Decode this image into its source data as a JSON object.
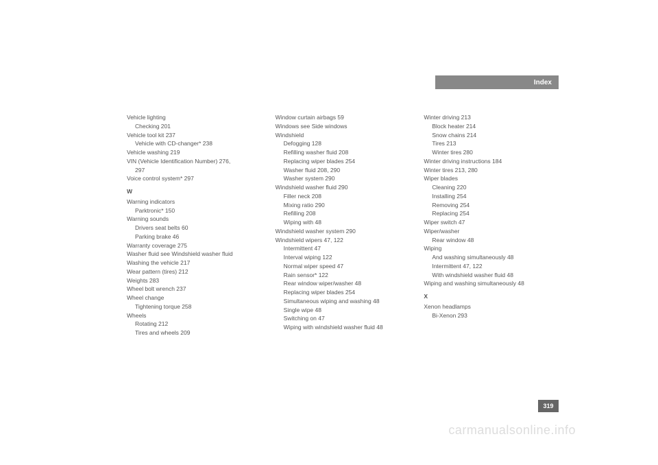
{
  "header": {
    "title": "Index"
  },
  "page_badge": "319",
  "watermark": "carmanualsonline.info",
  "columns": [
    {
      "items": [
        {
          "type": "line",
          "text": "Vehicle lighting"
        },
        {
          "type": "sub",
          "text": "Checking 201"
        },
        {
          "type": "line",
          "text": "Vehicle tool kit 237"
        },
        {
          "type": "sub",
          "text": "Vehicle with CD-changer* 238"
        },
        {
          "type": "line",
          "text": "Vehicle washing 219"
        },
        {
          "type": "line",
          "text": "VIN (Vehicle Identification Number) 276,"
        },
        {
          "type": "sub",
          "text": "297"
        },
        {
          "type": "line",
          "text": "Voice control system* 297"
        },
        {
          "type": "letter",
          "text": "W"
        },
        {
          "type": "line",
          "text": "Warning indicators"
        },
        {
          "type": "sub",
          "text": "Parktronic* 150"
        },
        {
          "type": "line",
          "text": "Warning sounds"
        },
        {
          "type": "sub",
          "text": "Drivers seat belts 60"
        },
        {
          "type": "sub",
          "text": "Parking brake 46"
        },
        {
          "type": "line",
          "text": "Warranty coverage 275"
        },
        {
          "type": "line",
          "text": "Washer fluid see Windshield washer fluid"
        },
        {
          "type": "line",
          "text": "Washing the vehicle 217"
        },
        {
          "type": "line",
          "text": "Wear pattern (tires) 212"
        },
        {
          "type": "line",
          "text": "Weights 283"
        },
        {
          "type": "line",
          "text": "Wheel bolt wrench 237"
        },
        {
          "type": "line",
          "text": "Wheel change"
        },
        {
          "type": "sub",
          "text": "Tightening torque 258"
        },
        {
          "type": "line",
          "text": "Wheels"
        },
        {
          "type": "sub",
          "text": "Rotating 212"
        },
        {
          "type": "sub",
          "text": "Tires and wheels 209"
        }
      ]
    },
    {
      "items": [
        {
          "type": "line",
          "text": "Window curtain airbags 59"
        },
        {
          "type": "line",
          "text": "Windows see Side windows"
        },
        {
          "type": "line",
          "text": "Windshield"
        },
        {
          "type": "sub",
          "text": "Defogging 128"
        },
        {
          "type": "sub",
          "text": "Refilling washer fluid 208"
        },
        {
          "type": "sub",
          "text": "Replacing wiper blades 254"
        },
        {
          "type": "sub",
          "text": "Washer fluid 208, 290"
        },
        {
          "type": "sub",
          "text": "Washer system 290"
        },
        {
          "type": "line",
          "text": "Windshield washer fluid 290"
        },
        {
          "type": "sub",
          "text": "Filler neck 208"
        },
        {
          "type": "sub",
          "text": "Mixing ratio 290"
        },
        {
          "type": "sub",
          "text": "Refilling 208"
        },
        {
          "type": "sub",
          "text": "Wiping with 48"
        },
        {
          "type": "line",
          "text": "Windshield washer system 290"
        },
        {
          "type": "line",
          "text": "Windshield wipers 47, 122"
        },
        {
          "type": "sub",
          "text": "Intermittent 47"
        },
        {
          "type": "sub",
          "text": "Interval wiping 122"
        },
        {
          "type": "sub",
          "text": "Normal wiper speed 47"
        },
        {
          "type": "sub",
          "text": "Rain sensor* 122"
        },
        {
          "type": "sub",
          "text": "Rear window wiper/washer 48"
        },
        {
          "type": "sub",
          "text": "Replacing wiper blades 254"
        },
        {
          "type": "sub",
          "text": "Simultaneous wiping and washing 48"
        },
        {
          "type": "sub",
          "text": "Single wipe 48"
        },
        {
          "type": "sub",
          "text": "Switching on 47"
        },
        {
          "type": "sub",
          "text": "Wiping with windshield washer fluid 48"
        }
      ]
    },
    {
      "items": [
        {
          "type": "line",
          "text": "Winter driving 213"
        },
        {
          "type": "sub",
          "text": "Block heater 214"
        },
        {
          "type": "sub",
          "text": "Snow chains 214"
        },
        {
          "type": "sub",
          "text": "Tires 213"
        },
        {
          "type": "sub",
          "text": "Winter tires 280"
        },
        {
          "type": "line",
          "text": "Winter driving instructions 184"
        },
        {
          "type": "line",
          "text": "Winter tires 213, 280"
        },
        {
          "type": "line",
          "text": "Wiper blades"
        },
        {
          "type": "sub",
          "text": "Cleaning 220"
        },
        {
          "type": "sub",
          "text": "Installing 254"
        },
        {
          "type": "sub",
          "text": "Removing 254"
        },
        {
          "type": "sub",
          "text": "Replacing 254"
        },
        {
          "type": "line",
          "text": "Wiper switch 47"
        },
        {
          "type": "line",
          "text": "Wiper/washer"
        },
        {
          "type": "sub",
          "text": "Rear window 48"
        },
        {
          "type": "line",
          "text": "Wiping"
        },
        {
          "type": "sub",
          "text": "And washing simultaneously 48"
        },
        {
          "type": "sub",
          "text": "Intermittent 47, 122"
        },
        {
          "type": "sub",
          "text": "With windshield washer fluid 48"
        },
        {
          "type": "line",
          "text": "Wiping and washing simultaneously 48"
        },
        {
          "type": "letter",
          "text": "X"
        },
        {
          "type": "line",
          "text": "Xenon headlamps"
        },
        {
          "type": "sub",
          "text": "Bi-Xenon 293"
        }
      ]
    }
  ]
}
